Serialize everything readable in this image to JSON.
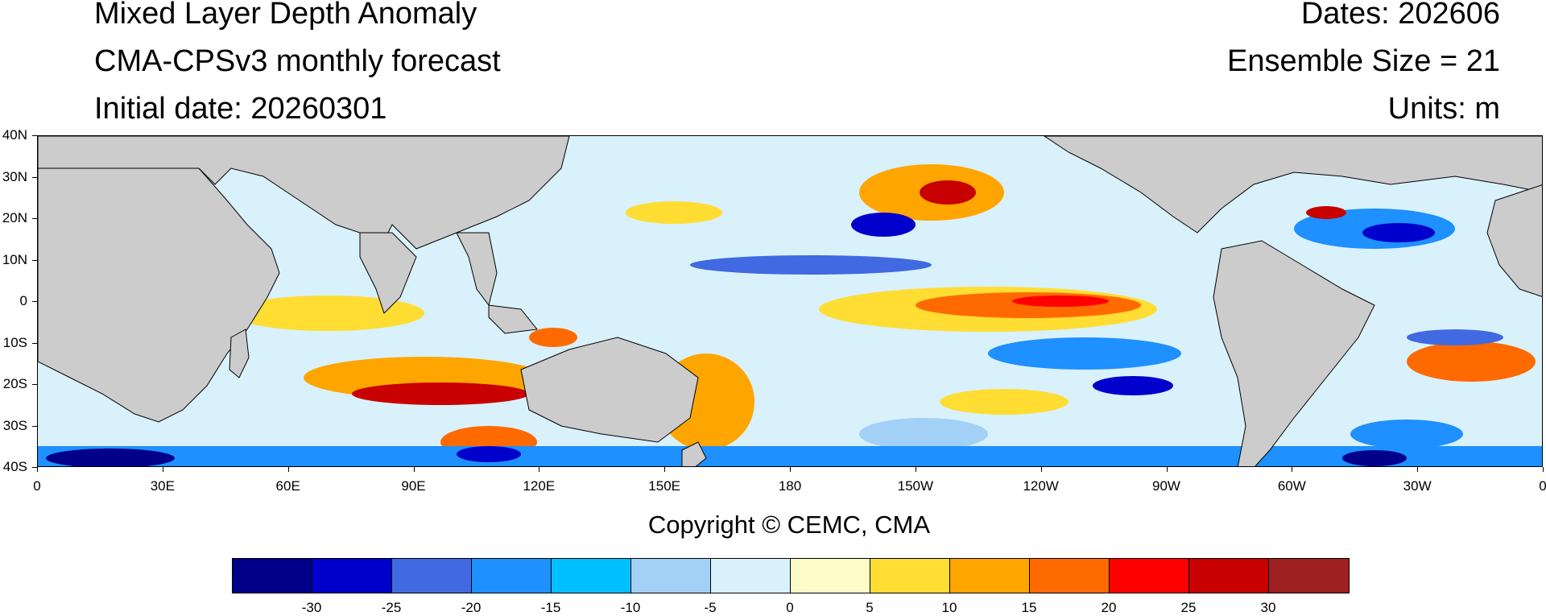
{
  "header": {
    "title": "Mixed Layer Depth Anomaly",
    "model": "CMA-CPSv3 monthly forecast",
    "initial_date": "Initial date: 20260301",
    "dates": "Dates: 202606",
    "ensemble": "Ensemble Size = 21",
    "units": "Units: m"
  },
  "map": {
    "lat_labels": [
      "40N",
      "30N",
      "20N",
      "10N",
      "0",
      "10S",
      "20S",
      "30S",
      "40S"
    ],
    "lon_labels": [
      "0",
      "30E",
      "60E",
      "90E",
      "120E",
      "150E",
      "180",
      "150W",
      "120W",
      "90W",
      "60W",
      "30W",
      "0"
    ],
    "land_color": "#cccccc",
    "ocean_base_color": "#d9f1fb"
  },
  "copyright": "Copyright © CEMC, CMA",
  "colorbar": {
    "colors": [
      "#00008b",
      "#0000cd",
      "#4169e1",
      "#1e90ff",
      "#00bfff",
      "#a3d0f7",
      "#d9f1fb",
      "#fffbc8",
      "#ffdd33",
      "#ffa500",
      "#ff6a00",
      "#ff0000",
      "#c80000",
      "#9e2020"
    ],
    "labels": [
      "-30",
      "-25",
      "-20",
      "-15",
      "-10",
      "-5",
      "0",
      "5",
      "10",
      "15",
      "20",
      "25",
      "30"
    ]
  }
}
